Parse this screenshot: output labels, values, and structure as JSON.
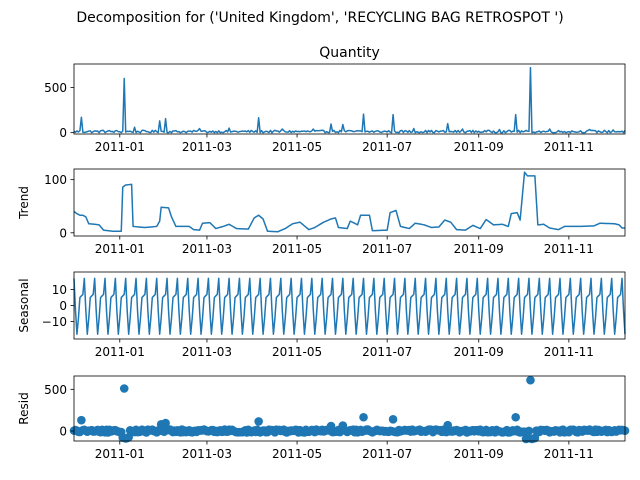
{
  "figure": {
    "suptitle": "Decomposition for ('United Kingdom', 'RECYCLING BAG RETROSPOT ')"
  },
  "colors": {
    "line": "#1f77b4",
    "axes": "#000000",
    "background": "#ffffff"
  },
  "chart_data": [
    {
      "type": "line",
      "title": "Quantity",
      "ylabel": "",
      "x_start": "2010-12-01",
      "x_end": "2011-12-09",
      "ylim": [
        -15,
        760
      ],
      "x_ticks": [
        "2011-01",
        "2011-03",
        "2011-05",
        "2011-07",
        "2011-09",
        "2011-11"
      ],
      "y_ticks": [
        0,
        500
      ],
      "y_tick_labels": [
        "0",
        "500"
      ],
      "series": [
        {
          "baseline": 12,
          "noise": 14,
          "spikes": [
            {
              "x": "2010-12-06",
              "y": 170
            },
            {
              "x": "2010-12-21",
              "y": 25
            },
            {
              "x": "2011-01-04",
              "y": 600
            },
            {
              "x": "2011-01-11",
              "y": 60
            },
            {
              "x": "2011-01-28",
              "y": 130
            },
            {
              "x": "2011-02-01",
              "y": 155
            },
            {
              "x": "2011-02-24",
              "y": 45
            },
            {
              "x": "2011-03-16",
              "y": 50
            },
            {
              "x": "2011-04-05",
              "y": 165
            },
            {
              "x": "2011-04-21",
              "y": 40
            },
            {
              "x": "2011-05-12",
              "y": 40
            },
            {
              "x": "2011-05-24",
              "y": 95
            },
            {
              "x": "2011-06-01",
              "y": 90
            },
            {
              "x": "2011-06-15",
              "y": 205
            },
            {
              "x": "2011-07-05",
              "y": 200
            },
            {
              "x": "2011-07-19",
              "y": 45
            },
            {
              "x": "2011-08-11",
              "y": 100
            },
            {
              "x": "2011-08-21",
              "y": 40
            },
            {
              "x": "2011-09-15",
              "y": 35
            },
            {
              "x": "2011-09-26",
              "y": 200
            },
            {
              "x": "2011-10-06",
              "y": 720
            },
            {
              "x": "2011-10-19",
              "y": 40
            },
            {
              "x": "2011-11-15",
              "y": 35
            },
            {
              "x": "2011-12-01",
              "y": 30
            }
          ]
        }
      ]
    },
    {
      "type": "line",
      "title": "",
      "ylabel": "Trend",
      "x_start": "2010-12-01",
      "x_end": "2011-12-09",
      "ylim": [
        -6,
        120
      ],
      "x_ticks": [
        "2011-01",
        "2011-03",
        "2011-05",
        "2011-07",
        "2011-09",
        "2011-11"
      ],
      "y_ticks": [
        0,
        100
      ],
      "y_tick_labels": [
        "0",
        "100"
      ],
      "series": [
        {
          "points": [
            [
              "2010-12-01",
              40
            ],
            [
              "2010-12-03",
              36
            ],
            [
              "2010-12-05",
              33
            ],
            [
              "2010-12-07",
              33
            ],
            [
              "2010-12-09",
              30
            ],
            [
              "2010-12-11",
              17
            ],
            [
              "2010-12-15",
              16
            ],
            [
              "2010-12-18",
              15
            ],
            [
              "2010-12-21",
              5
            ],
            [
              "2010-12-27",
              3
            ],
            [
              "2011-01-02",
              3
            ],
            [
              "2011-01-03",
              86
            ],
            [
              "2011-01-05",
              90
            ],
            [
              "2011-01-09",
              91
            ],
            [
              "2011-01-10",
              12
            ],
            [
              "2011-01-18",
              10
            ],
            [
              "2011-01-26",
              12
            ],
            [
              "2011-01-28",
              22
            ],
            [
              "2011-01-29",
              48
            ],
            [
              "2011-02-03",
              47
            ],
            [
              "2011-02-05",
              30
            ],
            [
              "2011-02-08",
              12
            ],
            [
              "2011-02-17",
              12
            ],
            [
              "2011-02-20",
              6
            ],
            [
              "2011-02-24",
              5
            ],
            [
              "2011-02-26",
              18
            ],
            [
              "2011-03-03",
              19
            ],
            [
              "2011-03-07",
              8
            ],
            [
              "2011-03-12",
              12
            ],
            [
              "2011-03-16",
              16
            ],
            [
              "2011-03-21",
              8
            ],
            [
              "2011-03-29",
              7
            ],
            [
              "2011-04-02",
              28
            ],
            [
              "2011-04-05",
              33
            ],
            [
              "2011-04-08",
              26
            ],
            [
              "2011-04-11",
              3
            ],
            [
              "2011-04-18",
              2
            ],
            [
              "2011-04-23",
              8
            ],
            [
              "2011-04-28",
              17
            ],
            [
              "2011-05-03",
              20
            ],
            [
              "2011-05-09",
              6
            ],
            [
              "2011-05-13",
              10
            ],
            [
              "2011-05-19",
              20
            ],
            [
              "2011-05-24",
              26
            ],
            [
              "2011-05-27",
              28
            ],
            [
              "2011-05-29",
              10
            ],
            [
              "2011-06-04",
              8
            ],
            [
              "2011-06-06",
              22
            ],
            [
              "2011-06-11",
              15
            ],
            [
              "2011-06-13",
              33
            ],
            [
              "2011-06-19",
              33
            ],
            [
              "2011-06-21",
              4
            ],
            [
              "2011-07-01",
              5
            ],
            [
              "2011-07-03",
              38
            ],
            [
              "2011-07-07",
              42
            ],
            [
              "2011-07-10",
              12
            ],
            [
              "2011-07-16",
              8
            ],
            [
              "2011-07-20",
              18
            ],
            [
              "2011-07-26",
              15
            ],
            [
              "2011-07-31",
              10
            ],
            [
              "2011-08-05",
              11
            ],
            [
              "2011-08-09",
              24
            ],
            [
              "2011-08-13",
              20
            ],
            [
              "2011-08-17",
              6
            ],
            [
              "2011-08-23",
              5
            ],
            [
              "2011-08-28",
              14
            ],
            [
              "2011-09-02",
              8
            ],
            [
              "2011-09-06",
              25
            ],
            [
              "2011-09-11",
              15
            ],
            [
              "2011-09-17",
              16
            ],
            [
              "2011-09-21",
              12
            ],
            [
              "2011-09-23",
              36
            ],
            [
              "2011-09-27",
              38
            ],
            [
              "2011-09-29",
              24
            ],
            [
              "2011-10-02",
              114
            ],
            [
              "2011-10-04",
              107
            ],
            [
              "2011-10-09",
              107
            ],
            [
              "2011-10-11",
              15
            ],
            [
              "2011-10-15",
              16
            ],
            [
              "2011-10-19",
              9
            ],
            [
              "2011-10-25",
              6
            ],
            [
              "2011-10-29",
              12
            ],
            [
              "2011-11-08",
              12
            ],
            [
              "2011-11-18",
              13
            ],
            [
              "2011-11-22",
              18
            ],
            [
              "2011-12-02",
              17
            ],
            [
              "2011-12-05",
              15
            ],
            [
              "2011-12-07",
              9
            ]
          ]
        }
      ]
    },
    {
      "type": "line",
      "title": "",
      "ylabel": "Seasonal",
      "x_start": "2010-12-01",
      "x_end": "2011-12-09",
      "ylim": [
        -21,
        21
      ],
      "x_ticks": [
        "2011-01",
        "2011-03",
        "2011-05",
        "2011-07",
        "2011-09",
        "2011-11"
      ],
      "y_ticks": [
        -10,
        0,
        10
      ],
      "y_tick_labels": [
        "−10",
        "0",
        "10"
      ],
      "series": [
        {
          "period": 7,
          "pattern": [
            17,
            -3,
            -18,
            -8,
            5,
            6,
            7
          ]
        }
      ]
    },
    {
      "type": "scatter",
      "title": "",
      "ylabel": "Resid",
      "x_start": "2010-12-01",
      "x_end": "2011-12-09",
      "ylim": [
        -120,
        660
      ],
      "x_ticks": [
        "2011-01",
        "2011-03",
        "2011-05",
        "2011-07",
        "2011-09",
        "2011-11"
      ],
      "y_ticks": [
        0,
        500
      ],
      "y_tick_labels": [
        "0",
        "500"
      ],
      "series": [
        {
          "noise": 18,
          "outliers": [
            {
              "x": "2010-12-06",
              "y": 130
            },
            {
              "x": "2011-01-03",
              "y": -80
            },
            {
              "x": "2011-01-04",
              "y": 510
            },
            {
              "x": "2011-01-05",
              "y": -90
            },
            {
              "x": "2011-01-06",
              "y": -85
            },
            {
              "x": "2011-01-07",
              "y": -75
            },
            {
              "x": "2011-01-29",
              "y": 80
            },
            {
              "x": "2011-02-01",
              "y": 95
            },
            {
              "x": "2011-04-05",
              "y": 115
            },
            {
              "x": "2011-05-24",
              "y": 60
            },
            {
              "x": "2011-06-01",
              "y": 65
            },
            {
              "x": "2011-06-15",
              "y": 165
            },
            {
              "x": "2011-07-05",
              "y": 140
            },
            {
              "x": "2011-08-11",
              "y": 70
            },
            {
              "x": "2011-09-26",
              "y": 165
            },
            {
              "x": "2011-10-03",
              "y": -95
            },
            {
              "x": "2011-10-04",
              "y": -90
            },
            {
              "x": "2011-10-06",
              "y": 610
            },
            {
              "x": "2011-10-07",
              "y": -95
            },
            {
              "x": "2011-10-08",
              "y": -90
            },
            {
              "x": "2011-10-09",
              "y": -85
            }
          ]
        }
      ]
    }
  ]
}
